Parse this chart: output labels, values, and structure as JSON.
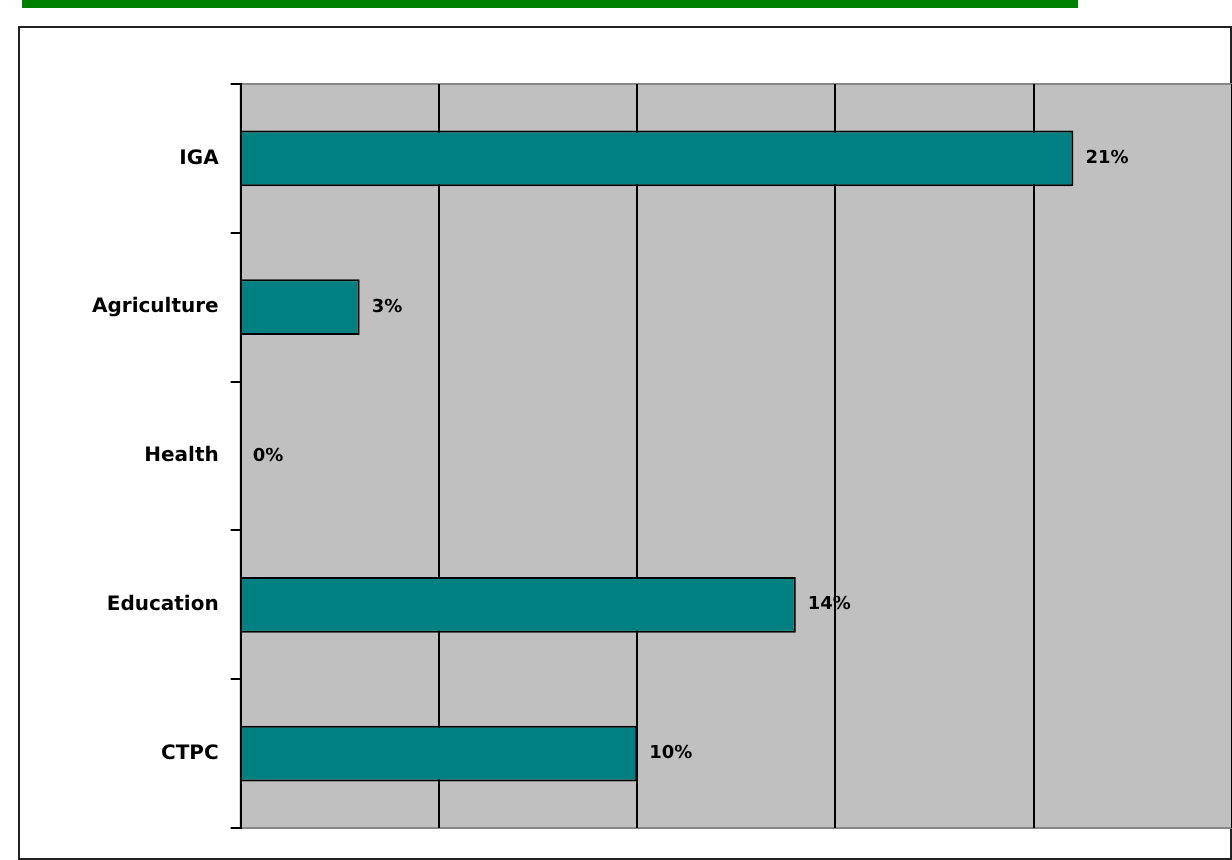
{
  "chart_data": {
    "type": "bar",
    "orientation": "horizontal",
    "categories": [
      "IGA",
      "Agriculture",
      "Health",
      "Education",
      "CTPC"
    ],
    "values": [
      21,
      3,
      0,
      14,
      10
    ],
    "value_labels": [
      "21%",
      "3%",
      "0%",
      "14%",
      "10%"
    ],
    "color": "#008080",
    "xlim": [
      0,
      25
    ],
    "xticks": [
      {
        "value": 0,
        "label": null
      },
      {
        "value": 5,
        "label": null
      },
      {
        "value": 10,
        "label": null
      },
      {
        "value": 15,
        "label": null
      },
      {
        "value": 20,
        "label": null
      },
      {
        "value": 25,
        "label": null
      }
    ],
    "grid": "x",
    "tick_labels": "y"
  }
}
